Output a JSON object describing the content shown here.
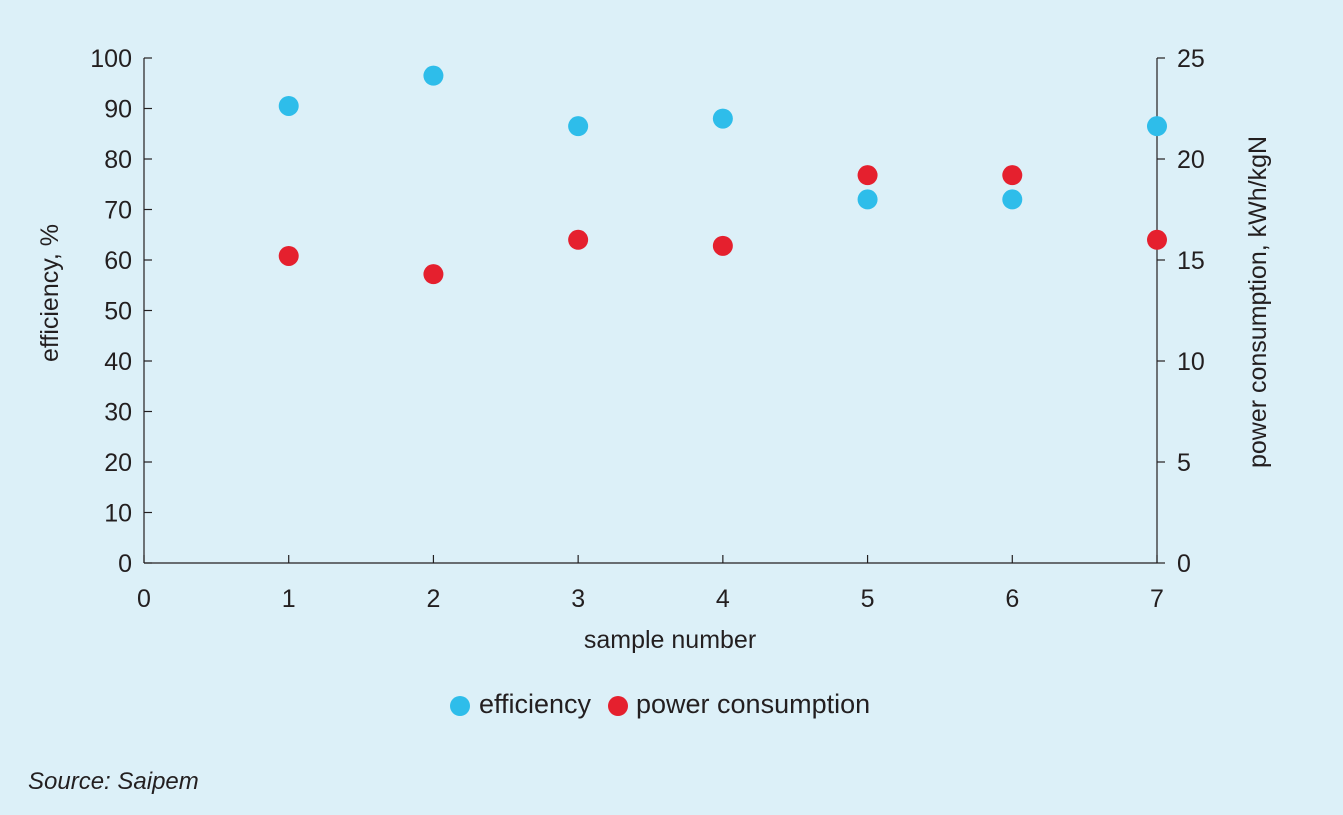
{
  "chart_data": {
    "type": "scatter",
    "xlabel": "sample number",
    "ylabel_left": "efficiency, %",
    "ylabel_right": "power consumption, kWh/kgN",
    "xlim": [
      0,
      7
    ],
    "ylim_left": [
      0,
      100
    ],
    "ylim_right": [
      0,
      25
    ],
    "x_ticks": [
      0,
      1,
      2,
      3,
      4,
      5,
      6,
      7
    ],
    "y_ticks_left": [
      0,
      10,
      20,
      30,
      40,
      50,
      60,
      70,
      80,
      90,
      100
    ],
    "y_ticks_right": [
      0,
      5,
      10,
      15,
      20,
      25
    ],
    "grid": false,
    "legend_position": "bottom-center",
    "series": [
      {
        "name": "efficiency",
        "axis": "left",
        "color": "#2ebdea",
        "x": [
          1,
          2,
          3,
          4,
          5,
          6,
          7
        ],
        "y": [
          90.5,
          96.5,
          86.5,
          88,
          72,
          72,
          86.5
        ]
      },
      {
        "name": "power consumption",
        "axis": "right",
        "color": "#e5202e",
        "x": [
          1,
          2,
          3,
          4,
          5,
          6,
          7
        ],
        "y": [
          15.2,
          14.3,
          16,
          15.7,
          19.2,
          19.2,
          16
        ]
      }
    ]
  },
  "source": "Source: Saipem"
}
